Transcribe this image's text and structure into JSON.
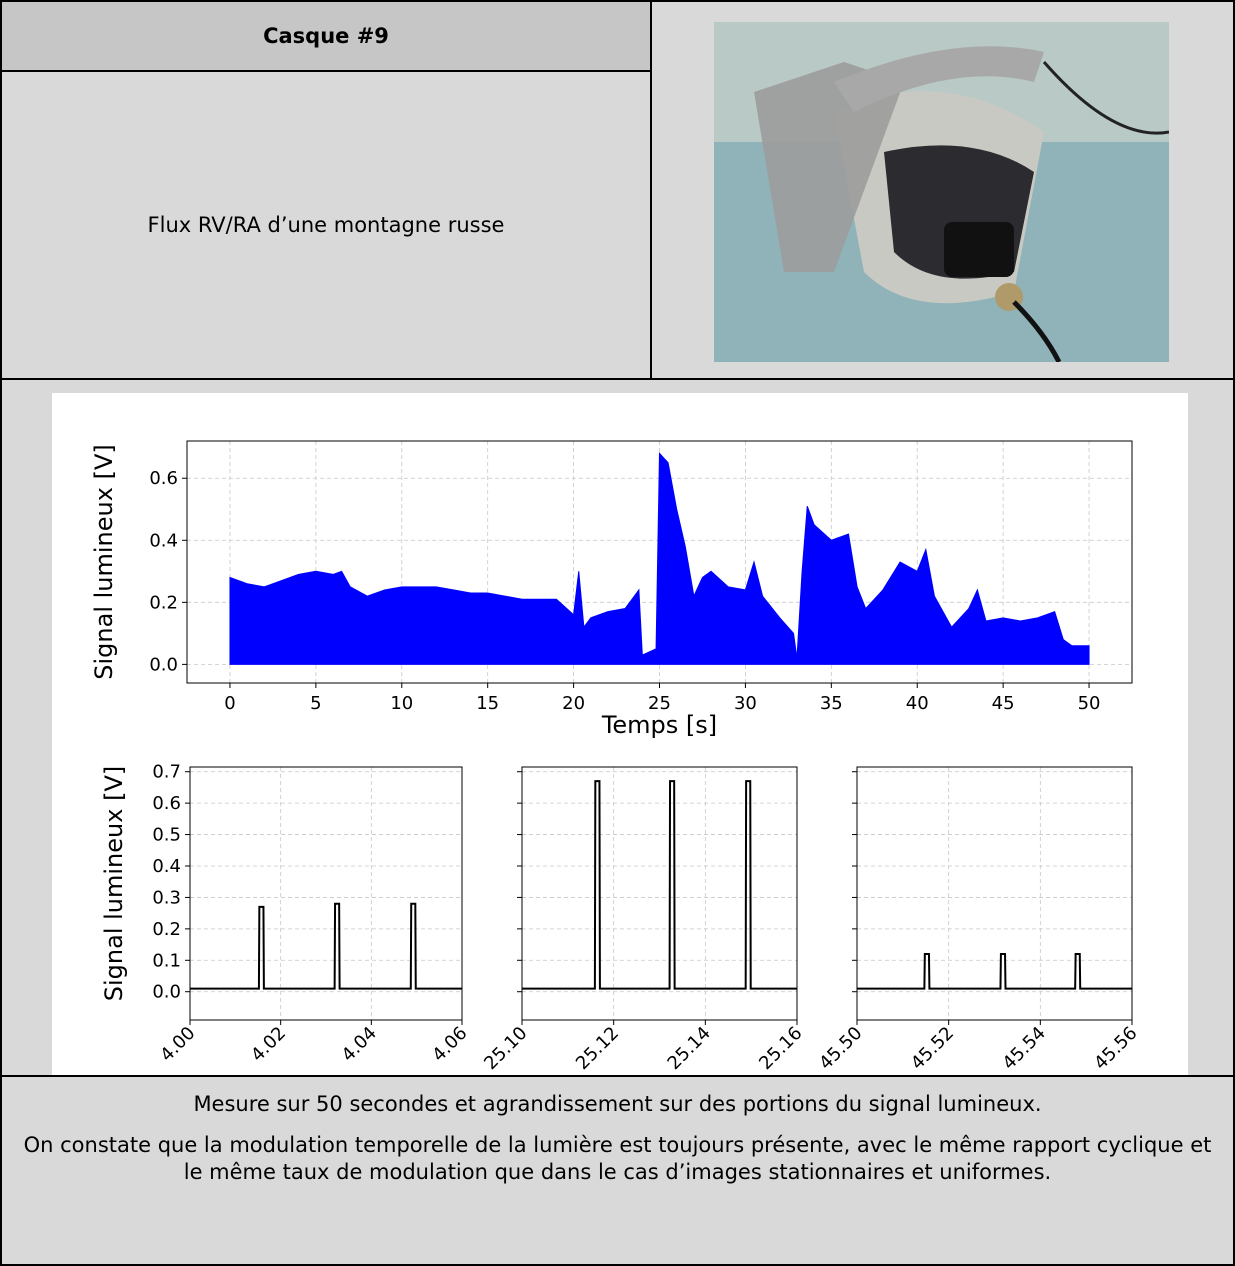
{
  "header": {
    "title": "Casque #9",
    "description": "Flux RV/RA d’une montagne russe"
  },
  "chart_data": [
    {
      "type": "area",
      "xlabel": "Temps [s]",
      "ylabel": "Signal lumineux [V]",
      "color": "#0000ff",
      "grid": true,
      "x": [
        0,
        1,
        2,
        3,
        4,
        5,
        6,
        6.5,
        7,
        8,
        9,
        10,
        11,
        12,
        13,
        14,
        15,
        16,
        17,
        18,
        19,
        20,
        20.3,
        20.6,
        21,
        22,
        23,
        23.8,
        24,
        24.8,
        25,
        25.5,
        26,
        26.5,
        27,
        27.5,
        28,
        29,
        30,
        30.5,
        31,
        32,
        32.8,
        33,
        33.3,
        33.6,
        34,
        35,
        36,
        36.5,
        37,
        38,
        39,
        40,
        40.5,
        41,
        42,
        43,
        43.5,
        44,
        45,
        46,
        47,
        48,
        48.5,
        49,
        50
      ],
      "values": [
        0.28,
        0.26,
        0.25,
        0.27,
        0.29,
        0.3,
        0.29,
        0.3,
        0.25,
        0.22,
        0.24,
        0.25,
        0.25,
        0.25,
        0.24,
        0.23,
        0.23,
        0.22,
        0.21,
        0.21,
        0.21,
        0.16,
        0.3,
        0.12,
        0.15,
        0.17,
        0.18,
        0.24,
        0.03,
        0.05,
        0.68,
        0.65,
        0.5,
        0.38,
        0.22,
        0.28,
        0.3,
        0.25,
        0.24,
        0.33,
        0.22,
        0.15,
        0.1,
        0.02,
        0.3,
        0.51,
        0.45,
        0.4,
        0.42,
        0.25,
        0.18,
        0.24,
        0.33,
        0.3,
        0.37,
        0.22,
        0.12,
        0.18,
        0.24,
        0.14,
        0.15,
        0.14,
        0.15,
        0.17,
        0.08,
        0.06,
        0.06
      ],
      "xlim": [
        -2.5,
        52.5
      ],
      "xticks": [
        0,
        5,
        10,
        15,
        20,
        25,
        30,
        35,
        40,
        45,
        50
      ],
      "ylim": [
        -0.06,
        0.72
      ],
      "yticks": [
        {
          "value": 0,
          "label": "0.0"
        },
        0.2,
        0.4,
        0.6
      ]
    },
    {
      "type": "line",
      "ylabel": "Signal lumineux [V]",
      "color": "#000000",
      "grid": true,
      "x": [
        4.0,
        4.0152,
        4.0153,
        4.0162,
        4.0163,
        4.0319,
        4.032,
        4.0329,
        4.033,
        4.0487,
        4.0488,
        4.0497,
        4.0498,
        4.06
      ],
      "values": [
        0.01,
        0.01,
        0.27,
        0.27,
        0.01,
        0.01,
        0.28,
        0.28,
        0.01,
        0.01,
        0.28,
        0.28,
        0.01,
        0.01
      ],
      "xlim": [
        4.0,
        4.06
      ],
      "xticks": [
        {
          "value": 4.0,
          "label": "4.00"
        },
        {
          "value": 4.02,
          "label": "4.02"
        },
        {
          "value": 4.04,
          "label": "4.04"
        },
        {
          "value": 4.06,
          "label": "4.06"
        }
      ],
      "ylim": [
        -0.09,
        0.715
      ],
      "yticks": [
        {
          "value": 0,
          "label": "0.0"
        },
        0.1,
        0.2,
        0.3,
        0.4,
        0.5,
        0.6,
        0.7
      ]
    },
    {
      "type": "line",
      "color": "#000000",
      "grid": true,
      "x": [
        25.1,
        25.1159,
        25.116,
        25.1169,
        25.117,
        25.1322,
        25.1323,
        25.1332,
        25.1333,
        25.1488,
        25.1489,
        25.1498,
        25.1499,
        25.16
      ],
      "values": [
        0.01,
        0.01,
        0.67,
        0.67,
        0.01,
        0.01,
        0.67,
        0.67,
        0.01,
        0.01,
        0.67,
        0.67,
        0.01,
        0.01
      ],
      "xlim": [
        25.1,
        25.16
      ],
      "xticks": [
        {
          "value": 25.1,
          "label": "25.10"
        },
        25.12,
        25.14,
        {
          "value": 25.16,
          "label": "25.16"
        }
      ],
      "ylim": [
        -0.09,
        0.715
      ],
      "yticks": [
        0,
        0.1,
        0.2,
        0.3,
        0.4,
        0.5,
        0.6,
        0.7
      ]
    },
    {
      "type": "line",
      "color": "#000000",
      "grid": true,
      "x": [
        45.5,
        45.5147,
        45.5148,
        45.5157,
        45.5158,
        45.5313,
        45.5314,
        45.5323,
        45.5324,
        45.5476,
        45.5477,
        45.5486,
        45.5487,
        45.56
      ],
      "values": [
        0.01,
        0.01,
        0.12,
        0.12,
        0.01,
        0.01,
        0.12,
        0.12,
        0.01,
        0.01,
        0.12,
        0.12,
        0.01,
        0.01
      ],
      "xlim": [
        45.5,
        45.56
      ],
      "xticks": [
        {
          "value": 45.5,
          "label": "45.50"
        },
        45.52,
        45.54,
        45.56
      ],
      "ylim": [
        -0.09,
        0.715
      ],
      "yticks": [
        0,
        0.1,
        0.2,
        0.3,
        0.4,
        0.5,
        0.6,
        0.7
      ]
    }
  ],
  "caption": {
    "paragraphs": [
      "Mesure sur 50 secondes et agrandissement sur des portions du signal lumineux.",
      "On constate que la modulation temporelle de la lumière est toujours présente, avec le même rapport cyclique et le même taux de modulation que dans le cas d’images stationnaires et uniformes."
    ]
  }
}
